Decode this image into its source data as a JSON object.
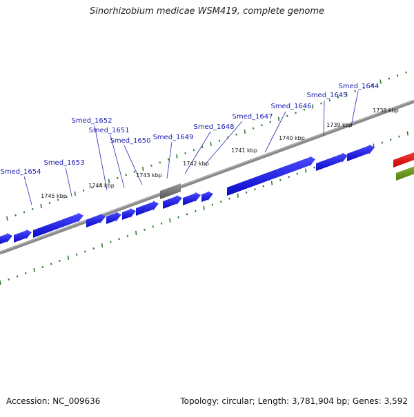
{
  "title": "Sinorhizobium medicae WSM419, complete genome",
  "footer": {
    "accession": "Accession: NC_009636",
    "topology": "Topology: circular; Length: 3,781,904 bp; Genes: 3,592"
  },
  "colors": {
    "gene": "#1f1fe0",
    "gene_other": "#6d6d6d",
    "gene_red": "#e01010",
    "gene_olive": "#6a9a1e",
    "backbone": "#8a8a8a",
    "tick": "#2d7a2d",
    "gene_label": "#1a1ab0"
  },
  "map": {
    "scale_labels": [
      "1738 kbp",
      "1739 kbp",
      "1740 kbp",
      "1741 kbp",
      "1742 kbp",
      "1743 kbp",
      "1744 kbp",
      "1745 kbp"
    ],
    "gene_labels": [
      "Smed_1644",
      "Smed_1645",
      "Smed_1646",
      "Smed_1647",
      "Smed_1648",
      "Smed_1649",
      "Smed_1650",
      "Smed_1651",
      "Smed_1652",
      "Smed_1653",
      "Smed_1654"
    ]
  }
}
